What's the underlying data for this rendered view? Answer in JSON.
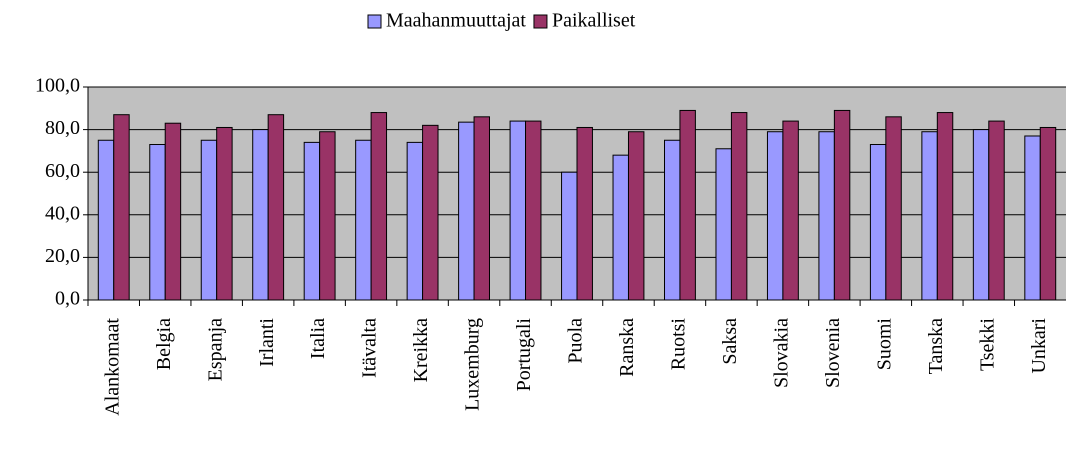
{
  "chart_data": {
    "type": "bar",
    "categories": [
      "Alankomaat",
      "Belgia",
      "Espanja",
      "Irlanti",
      "Italia",
      "Itävalta",
      "Kreikka",
      "Luxemburg",
      "Portugali",
      "Puola",
      "Ranska",
      "Ruotsi",
      "Saksa",
      "Slovakia",
      "Slovenia",
      "Suomi",
      "Tanska",
      "Tsekki",
      "Unkari"
    ],
    "series": [
      {
        "name": "Maahanmuuttajat",
        "color": "#9999ff",
        "values": [
          75,
          73,
          75,
          80,
          74,
          75,
          74,
          83.5,
          84,
          60,
          68,
          75,
          71,
          79,
          79,
          73,
          79,
          80,
          77
        ]
      },
      {
        "name": "Paikalliset",
        "color": "#993366",
        "values": [
          87,
          83,
          81,
          87,
          79,
          88,
          82,
          86,
          84,
          81,
          79,
          89,
          88,
          84,
          89,
          86,
          88,
          84,
          81
        ]
      }
    ],
    "ylim": [
      0,
      100
    ],
    "yticks": [
      {
        "value": 0,
        "label": "0,0"
      },
      {
        "value": 20,
        "label": "20,0"
      },
      {
        "value": 40,
        "label": "40,0"
      },
      {
        "value": 60,
        "label": "60,0"
      },
      {
        "value": 80,
        "label": "80,0"
      },
      {
        "value": 100,
        "label": "100,0"
      }
    ],
    "grid": true,
    "legend": "top"
  }
}
